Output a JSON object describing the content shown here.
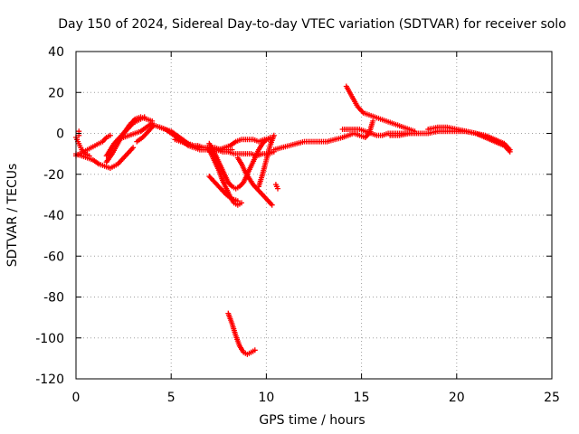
{
  "chart_data": {
    "type": "scatter",
    "title": "Day 150 of 2024, Sidereal Day-to-day VTEC variation (SDTVAR) for receiver solo",
    "xlabel": "GPS time / hours",
    "ylabel": "SDTVAR / TECUs",
    "xlim": [
      0,
      25
    ],
    "ylim": [
      -120,
      40
    ],
    "xticks": [
      0,
      5,
      10,
      15,
      20,
      25
    ],
    "yticks": [
      -120,
      -100,
      -80,
      -60,
      -40,
      -20,
      0,
      20,
      40
    ],
    "xtick_labels": [
      "0",
      "5",
      "10",
      "15",
      "20",
      "25"
    ],
    "ytick_labels": [
      "-120",
      "-100",
      "-80",
      "-60",
      "-40",
      "-20",
      "0",
      "20",
      "40"
    ],
    "grid": true,
    "marker": "plus",
    "series_color": "#ff0000",
    "series": [
      {
        "name": "track1",
        "x": [
          0.0,
          0.3,
          0.6,
          0.9,
          1.2,
          1.5,
          1.8,
          2.0,
          2.2,
          2.4,
          2.6,
          2.8,
          3.0
        ],
        "y": [
          -10,
          -11,
          -12,
          -13,
          -15,
          -16,
          -17,
          -16,
          -15,
          -13,
          -11,
          -9,
          -7
        ]
      },
      {
        "name": "track2",
        "x": [
          0.0,
          0.2,
          0.4,
          0.6,
          0.8,
          1.0,
          1.2,
          1.4,
          1.6,
          1.8
        ],
        "y": [
          -11,
          -10,
          -9,
          -8,
          -7,
          -6,
          -5,
          -4,
          -2,
          -1
        ]
      },
      {
        "name": "track3",
        "x": [
          0.0,
          0.1,
          0.2,
          0.3,
          0.5,
          0.7
        ],
        "y": [
          -2,
          -4,
          -6,
          -8,
          -10,
          -11
        ]
      },
      {
        "name": "track4",
        "x": [
          0.15,
          0.15,
          0.15
        ],
        "y": [
          -1,
          0,
          1
        ]
      },
      {
        "name": "track5",
        "x": [
          1.6,
          1.9,
          2.2,
          2.5,
          2.8,
          3.1,
          3.4,
          3.7,
          4.0
        ],
        "y": [
          -14,
          -10,
          -5,
          0,
          4,
          7,
          8,
          7,
          6
        ]
      },
      {
        "name": "track6",
        "x": [
          1.6,
          1.8,
          2.0,
          2.2,
          2.4,
          2.6,
          2.8,
          3.0,
          3.2,
          3.4,
          3.6
        ],
        "y": [
          -11,
          -8,
          -5,
          -3,
          -1,
          1,
          3,
          5,
          6,
          7,
          8
        ]
      },
      {
        "name": "track7",
        "x": [
          2.2,
          2.5,
          2.8,
          3.1,
          3.4,
          3.7,
          4.0
        ],
        "y": [
          -3,
          -2,
          -1,
          0,
          1,
          3,
          5
        ]
      },
      {
        "name": "track8",
        "x": [
          3.2,
          3.5,
          3.8,
          4.1,
          4.4,
          4.7,
          5.0,
          5.3,
          5.6,
          5.9,
          6.2,
          6.5
        ],
        "y": [
          -4,
          -2,
          1,
          4,
          3,
          2,
          1,
          -1,
          -3,
          -5,
          -6,
          -7
        ]
      },
      {
        "name": "track9",
        "x": [
          4.4,
          4.7,
          5.0,
          5.3,
          5.6,
          5.9,
          6.2,
          6.5,
          6.8,
          7.1,
          7.4,
          7.7,
          8.0,
          8.3,
          8.6,
          8.9,
          9.2,
          9.5,
          9.8,
          10.1,
          10.4
        ],
        "y": [
          3,
          2,
          0,
          -2,
          -4,
          -6,
          -7,
          -8,
          -8,
          -8,
          -8,
          -9,
          -9,
          -10,
          -10,
          -10,
          -10,
          -11,
          -10,
          -10,
          -9
        ]
      },
      {
        "name": "track10",
        "x": [
          5.2,
          5.5,
          5.8,
          6.1,
          6.4,
          6.7,
          7.0,
          7.3,
          7.6,
          7.9,
          8.2
        ],
        "y": [
          -3,
          -4,
          -5,
          -6,
          -6,
          -7,
          -7,
          -7,
          -8,
          -8,
          -8
        ]
      },
      {
        "name": "track11",
        "x": [
          7.0,
          7.2,
          7.4,
          7.6,
          7.8,
          8.0,
          8.2,
          8.4,
          8.6,
          8.8,
          9.0,
          9.2,
          9.4,
          9.6,
          9.8,
          10.0,
          10.2
        ],
        "y": [
          -5,
          -8,
          -12,
          -16,
          -20,
          -24,
          -26,
          -27,
          -26,
          -24,
          -20,
          -16,
          -12,
          -8,
          -5,
          -3,
          -2
        ]
      },
      {
        "name": "track12",
        "x": [
          6.9,
          7.2,
          7.5,
          7.8,
          8.1,
          8.4,
          8.7,
          9.0,
          9.3,
          9.6,
          9.9,
          10.2
        ],
        "y": [
          -7,
          -8,
          -8,
          -7,
          -6,
          -4,
          -3,
          -3,
          -3,
          -4,
          -3,
          -3
        ]
      },
      {
        "name": "track13",
        "x": [
          6.9,
          7.1,
          7.3,
          7.5,
          7.7,
          7.9,
          8.1,
          8.3,
          8.5,
          8.7
        ],
        "y": [
          -7,
          -10,
          -14,
          -18,
          -23,
          -27,
          -31,
          -34,
          -35,
          -34
        ]
      },
      {
        "name": "track14",
        "x": [
          7.0,
          7.3,
          7.6,
          7.9,
          8.2,
          8.5
        ],
        "y": [
          -21,
          -24,
          -27,
          -30,
          -32,
          -33
        ]
      },
      {
        "name": "track15",
        "x": [
          8.5,
          8.7,
          8.9,
          9.1,
          9.3,
          9.5,
          9.7,
          9.9,
          10.1,
          10.3
        ],
        "y": [
          -12,
          -15,
          -19,
          -22,
          -25,
          -27,
          -29,
          -31,
          -33,
          -35
        ]
      },
      {
        "name": "track16",
        "x": [
          9.6,
          9.8,
          10.0,
          10.2,
          10.4
        ],
        "y": [
          -26,
          -20,
          -13,
          -6,
          -1
        ]
      },
      {
        "name": "track17",
        "x": [
          10.5,
          10.6
        ],
        "y": [
          -25,
          -27
        ]
      },
      {
        "name": "track18",
        "x": [
          8.0,
          8.2,
          8.4,
          8.6,
          8.8,
          9.0,
          9.2,
          9.4
        ],
        "y": [
          -88,
          -93,
          -99,
          -104,
          -107,
          -108,
          -107,
          -106
        ]
      },
      {
        "name": "track19",
        "x": [
          10.4,
          10.8,
          11.2,
          11.6,
          12.0,
          12.4,
          12.8,
          13.2,
          13.6,
          14.0
        ],
        "y": [
          -8,
          -7,
          -6,
          -5,
          -4,
          -4,
          -4,
          -4,
          -3,
          -2
        ]
      },
      {
        "name": "track20",
        "x": [
          14.0,
          14.3,
          14.6,
          14.9,
          15.2,
          15.5,
          15.8,
          16.1,
          16.4,
          16.7,
          17.0,
          17.3,
          17.6,
          17.9
        ],
        "y": [
          2,
          2,
          2,
          2,
          1,
          0,
          -1,
          -1,
          0,
          0,
          0,
          0,
          0,
          0
        ]
      },
      {
        "name": "track21",
        "x": [
          14.2,
          14.5,
          14.8,
          15.1,
          15.4,
          15.7,
          16.0,
          16.3,
          16.6,
          16.9,
          17.2,
          17.5,
          17.8
        ],
        "y": [
          23,
          18,
          13,
          10,
          9,
          8,
          7,
          6,
          5,
          4,
          3,
          2,
          1
        ]
      },
      {
        "name": "track22",
        "x": [
          14.0,
          14.3,
          14.6,
          14.9,
          15.2,
          15.4,
          15.6
        ],
        "y": [
          -2,
          -1,
          0,
          -1,
          -2,
          0,
          6
        ]
      },
      {
        "name": "track23",
        "x": [
          16.5,
          17.0,
          17.5,
          18.0,
          18.5,
          19.0,
          19.5,
          20.0,
          20.5,
          21.0,
          21.5,
          22.0,
          22.5,
          22.8
        ],
        "y": [
          -1,
          -1,
          0,
          0,
          0,
          1,
          1,
          1,
          1,
          0,
          -2,
          -4,
          -6,
          -9
        ]
      },
      {
        "name": "track24",
        "x": [
          18.5,
          19.0,
          19.5,
          20.0,
          20.5,
          21.0,
          21.5,
          22.0,
          22.5,
          22.8
        ],
        "y": [
          2,
          3,
          3,
          2,
          1,
          0,
          -1,
          -3,
          -5,
          -8
        ]
      }
    ]
  }
}
